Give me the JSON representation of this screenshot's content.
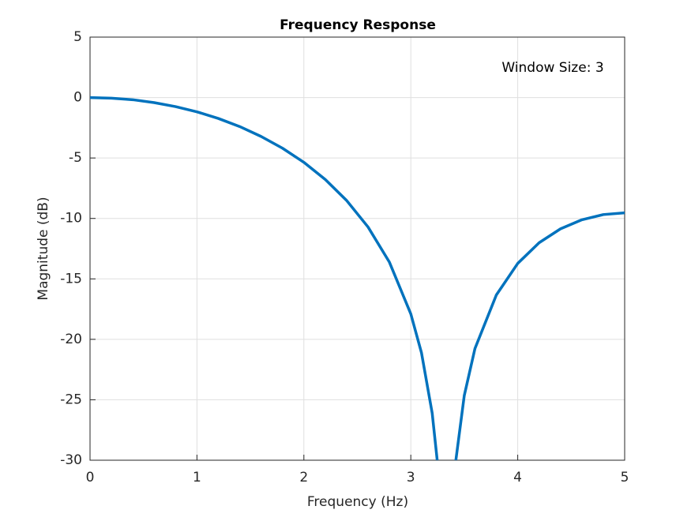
{
  "chart_data": {
    "type": "line",
    "title": "Frequency Response",
    "xlabel": "Frequency (Hz)",
    "ylabel": "Magnitude (dB)",
    "annotation": "Window Size: 3",
    "x": [
      0,
      0.2,
      0.4,
      0.6,
      0.8,
      1.0,
      1.2,
      1.4,
      1.6,
      1.8,
      2.0,
      2.2,
      2.4,
      2.6,
      2.8,
      3.0,
      3.1,
      3.2,
      3.25,
      3.33,
      3.42,
      3.5,
      3.6,
      3.8,
      4.0,
      4.2,
      4.4,
      4.6,
      4.8,
      5.0
    ],
    "series": [
      {
        "color": "#0072bd",
        "values": [
          0,
          -0.05,
          -0.18,
          -0.42,
          -0.75,
          -1.18,
          -1.73,
          -2.4,
          -3.22,
          -4.19,
          -5.36,
          -6.78,
          -8.52,
          -10.71,
          -13.62,
          -17.9,
          -21.12,
          -26.11,
          -30.26,
          null,
          -30.09,
          -24.65,
          -20.76,
          -16.33,
          -13.72,
          -12.01,
          -10.86,
          -10.11,
          -9.68,
          -9.54
        ]
      }
    ],
    "xlim": [
      0,
      5
    ],
    "xticks": [
      0,
      1,
      2,
      3,
      4,
      5
    ],
    "ylim": [
      -30,
      5
    ],
    "yticks": [
      5,
      0,
      -5,
      -10,
      -15,
      -20,
      -25,
      -30
    ],
    "grid": true
  }
}
